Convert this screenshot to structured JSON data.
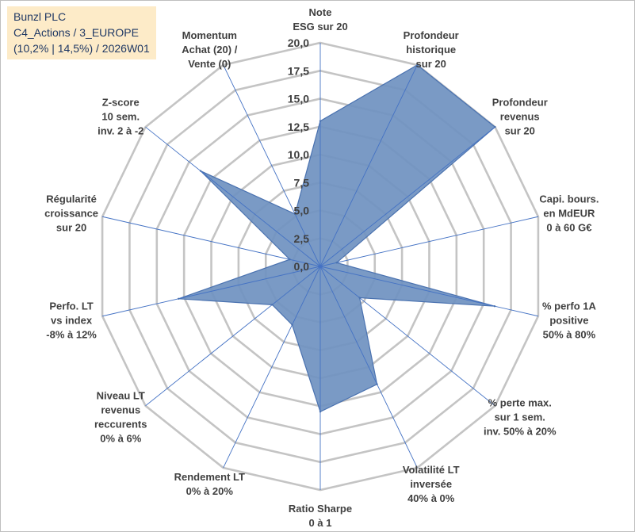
{
  "title": {
    "line1": "Bunzl PLC",
    "line2": "C4_Actions / 3_EUROPE",
    "line3": "(10,2% | 14,5%) / 2026W01"
  },
  "chart_data": {
    "type": "radar",
    "rmin": 0,
    "rmax": 20,
    "tick_step": 2.5,
    "grid": true,
    "fill_color": "#6f91c0",
    "edge_color": "#4a72b0",
    "grid_color": "#c4c4c4",
    "spoke_color": "#4472c4",
    "ticks": [
      "0,0",
      "2,5",
      "5,0",
      "7,5",
      "10,0",
      "12,5",
      "15,0",
      "17,5",
      "20,0"
    ],
    "axes": [
      {
        "label": [
          "Note",
          "ESG sur 20"
        ],
        "value": 13
      },
      {
        "label": [
          "Profondeur",
          "historique",
          "sur 20"
        ],
        "value": 20
      },
      {
        "label": [
          "Profondeur",
          "revenus",
          "sur 20"
        ],
        "value": 20
      },
      {
        "label": [
          "Capi. bours.",
          "en MdEUR",
          "0 à 60 G€"
        ],
        "value": 1.5
      },
      {
        "label": [
          "% perfo 1A",
          "positive",
          "50% à 80%"
        ],
        "value": 16
      },
      {
        "label": [
          "% perte max.",
          "sur 1 sem.",
          "inv. 50% à 20%"
        ],
        "value": 4.5
      },
      {
        "label": [
          "Volatilité LT",
          "inversée",
          "40% à 0%"
        ],
        "value": 11.7
      },
      {
        "label": [
          "Ratio Sharpe",
          "0 à 1"
        ],
        "value": 13
      },
      {
        "label": [
          "Rendement LT",
          "0% à 20%"
        ],
        "value": 5.8
      },
      {
        "label": [
          "Niveau LT",
          "revenus",
          "reccurents",
          "0% à 6%"
        ],
        "value": 5.5
      },
      {
        "label": [
          "Perfo. LT",
          "vs index",
          "-8% à 12%"
        ],
        "value": 13
      },
      {
        "label": [
          "Régularité",
          "croissance",
          "sur 20"
        ],
        "value": 2.8
      },
      {
        "label": [
          "Z-score",
          "10 sem.",
          "inv. 2 à -2"
        ],
        "value": 13.7
      },
      {
        "label": [
          "Momentum",
          "Achat (20) /",
          "Vente (0)"
        ],
        "value": 5.2
      }
    ]
  }
}
